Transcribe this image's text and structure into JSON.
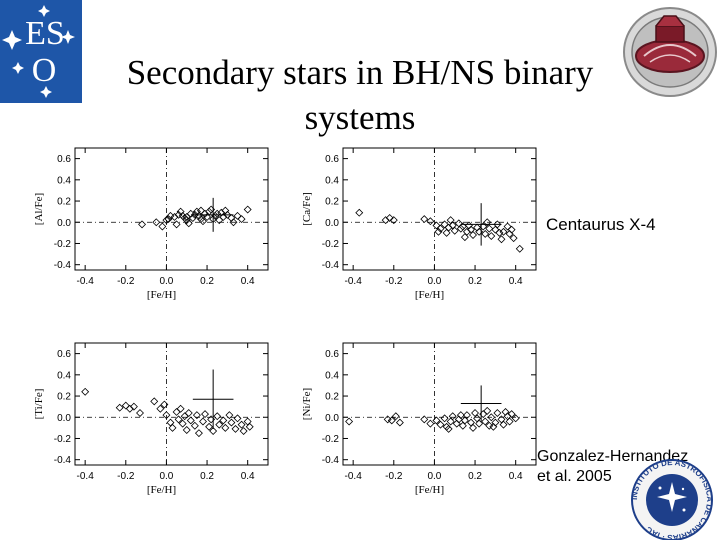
{
  "slide": {
    "title_line1": "Secondary stars in BH/NS binary",
    "title_line2": "systems",
    "system_name": "Centaurus X-4",
    "reference_line1": "Gonzalez-Hernandez",
    "reference_line2": "et al. 2005"
  },
  "logos": {
    "eso": "ESO",
    "iac": "INSTITUTO DE ASTROFISICA DE CANARIAS · IAC"
  },
  "chart_data": [
    {
      "type": "scatter",
      "ylabel": "[Al/Fe]",
      "xlabel": "[Fe/H]",
      "xlim": [
        -0.45,
        0.5
      ],
      "ylim": [
        -0.45,
        0.7
      ],
      "xticks": [
        -0.4,
        -0.2,
        0.0,
        0.2,
        0.4
      ],
      "yticks": [
        -0.4,
        -0.2,
        0.0,
        0.2,
        0.4,
        0.6
      ],
      "xtick_labels": [
        "-0.4",
        "-0.2",
        "0.0",
        "0.2",
        "0.4"
      ],
      "ytick_labels": [
        "-0.4",
        "-0.2",
        "0.0",
        "0.2",
        "0.4",
        "0.6"
      ],
      "reference_lines": {
        "x": 0,
        "y": 0
      },
      "marker": "open-diamond",
      "cen_x4": {
        "feh": 0.23,
        "feh_err": 0.1,
        "value": 0.07,
        "value_err": 0.16
      },
      "points": [
        [
          -0.05,
          0.0
        ],
        [
          0.0,
          0.02
        ],
        [
          0.01,
          0.03
        ],
        [
          0.04,
          0.05
        ],
        [
          0.06,
          0.07
        ],
        [
          0.08,
          0.06
        ],
        [
          0.1,
          0.05
        ],
        [
          0.12,
          0.08
        ],
        [
          0.13,
          0.04
        ],
        [
          0.15,
          0.1
        ],
        [
          0.16,
          0.06
        ],
        [
          0.17,
          0.03
        ],
        [
          0.19,
          0.08
        ],
        [
          0.2,
          0.05
        ],
        [
          0.21,
          0.1
        ],
        [
          0.23,
          0.03
        ],
        [
          0.24,
          0.06
        ],
        [
          0.25,
          0.08
        ],
        [
          0.26,
          0.02
        ],
        [
          0.28,
          0.05
        ],
        [
          0.3,
          0.07
        ],
        [
          0.32,
          0.04
        ],
        [
          0.35,
          0.06
        ],
        [
          0.1,
          0.02
        ],
        [
          0.07,
          0.1
        ],
        [
          0.14,
          0.07
        ],
        [
          0.02,
          0.06
        ],
        [
          0.18,
          0.01
        ],
        [
          0.22,
          0.12
        ],
        [
          0.27,
          0.09
        ],
        [
          0.4,
          0.12
        ],
        [
          -0.12,
          -0.02
        ],
        [
          -0.02,
          -0.04
        ],
        [
          0.05,
          -0.02
        ],
        [
          0.11,
          -0.01
        ],
        [
          0.33,
          0.0
        ],
        [
          0.37,
          0.03
        ],
        [
          0.29,
          0.11
        ],
        [
          0.09,
          0.04
        ],
        [
          0.17,
          0.11
        ]
      ]
    },
    {
      "type": "scatter",
      "ylabel": "[Ca/Fe]",
      "xlabel": "[Fe/H]",
      "xlim": [
        -0.45,
        0.5
      ],
      "ylim": [
        -0.45,
        0.7
      ],
      "xticks": [
        -0.4,
        -0.2,
        0.0,
        0.2,
        0.4
      ],
      "yticks": [
        -0.4,
        -0.2,
        0.0,
        0.2,
        0.4,
        0.6
      ],
      "xtick_labels": [
        "-0.4",
        "-0.2",
        "0.0",
        "0.2",
        "0.4"
      ],
      "ytick_labels": [
        "-0.4",
        "-0.2",
        "0.0",
        "0.2",
        "0.4",
        "0.6"
      ],
      "reference_lines": {
        "x": 0,
        "y": 0
      },
      "marker": "open-diamond",
      "cen_x4": {
        "feh": 0.23,
        "feh_err": 0.1,
        "value": -0.02,
        "value_err": 0.2
      },
      "points": [
        [
          -0.37,
          0.09
        ],
        [
          -0.24,
          0.02
        ],
        [
          -0.22,
          0.04
        ],
        [
          -0.2,
          0.02
        ],
        [
          -0.05,
          0.03
        ],
        [
          -0.02,
          0.01
        ],
        [
          0.01,
          -0.03
        ],
        [
          0.03,
          -0.06
        ],
        [
          0.05,
          -0.02
        ],
        [
          0.06,
          -0.1
        ],
        [
          0.07,
          -0.05
        ],
        [
          0.09,
          -0.03
        ],
        [
          0.1,
          -0.08
        ],
        [
          0.12,
          -0.01
        ],
        [
          0.13,
          -0.06
        ],
        [
          0.14,
          -0.04
        ],
        [
          0.16,
          -0.09
        ],
        [
          0.17,
          -0.03
        ],
        [
          0.18,
          -0.07
        ],
        [
          0.19,
          -0.12
        ],
        [
          0.21,
          -0.05
        ],
        [
          0.22,
          -0.09
        ],
        [
          0.24,
          -0.04
        ],
        [
          0.25,
          -0.11
        ],
        [
          0.27,
          -0.06
        ],
        [
          0.28,
          -0.13
        ],
        [
          0.3,
          -0.07
        ],
        [
          0.31,
          -0.02
        ],
        [
          0.32,
          -0.1
        ],
        [
          0.34,
          -0.09
        ],
        [
          0.36,
          -0.04
        ],
        [
          0.37,
          -0.11
        ],
        [
          0.38,
          -0.07
        ],
        [
          0.39,
          -0.15
        ],
        [
          0.42,
          -0.25
        ],
        [
          0.33,
          -0.16
        ],
        [
          0.15,
          -0.14
        ],
        [
          0.02,
          -0.09
        ],
        [
          0.08,
          0.02
        ],
        [
          0.26,
          0.0
        ]
      ]
    },
    {
      "type": "scatter",
      "ylabel": "[Ti/Fe]",
      "xlabel": "[Fe/H]",
      "xlim": [
        -0.45,
        0.5
      ],
      "ylim": [
        -0.45,
        0.7
      ],
      "xticks": [
        -0.4,
        -0.2,
        0.0,
        0.2,
        0.4
      ],
      "yticks": [
        -0.4,
        -0.2,
        0.0,
        0.2,
        0.4,
        0.6
      ],
      "xtick_labels": [
        "-0.4",
        "-0.2",
        "0.0",
        "0.2",
        "0.4"
      ],
      "ytick_labels": [
        "-0.4",
        "-0.2",
        "0.0",
        "0.2",
        "0.4",
        "0.6"
      ],
      "reference_lines": {
        "x": 0,
        "y": 0
      },
      "marker": "open-diamond",
      "cen_x4": {
        "feh": 0.23,
        "feh_err": 0.1,
        "value": 0.17,
        "value_err": 0.28
      },
      "points": [
        [
          -0.4,
          0.24
        ],
        [
          -0.23,
          0.09
        ],
        [
          -0.2,
          0.11
        ],
        [
          -0.18,
          0.08
        ],
        [
          -0.16,
          0.1
        ],
        [
          -0.13,
          0.04
        ],
        [
          -0.06,
          0.15
        ],
        [
          -0.03,
          0.08
        ],
        [
          -0.01,
          0.12
        ],
        [
          0.0,
          0.02
        ],
        [
          0.02,
          -0.05
        ],
        [
          0.03,
          -0.1
        ],
        [
          0.05,
          0.05
        ],
        [
          0.06,
          -0.02
        ],
        [
          0.08,
          -0.06
        ],
        [
          0.09,
          0.01
        ],
        [
          0.1,
          -0.12
        ],
        [
          0.11,
          0.04
        ],
        [
          0.12,
          -0.03
        ],
        [
          0.14,
          -0.08
        ],
        [
          0.15,
          0.02
        ],
        [
          0.16,
          -0.15
        ],
        [
          0.18,
          -0.04
        ],
        [
          0.19,
          0.03
        ],
        [
          0.21,
          -0.09
        ],
        [
          0.22,
          -0.02
        ],
        [
          0.23,
          -0.13
        ],
        [
          0.25,
          0.01
        ],
        [
          0.26,
          -0.07
        ],
        [
          0.28,
          -0.03
        ],
        [
          0.29,
          -0.1
        ],
        [
          0.31,
          0.02
        ],
        [
          0.32,
          -0.05
        ],
        [
          0.34,
          -0.11
        ],
        [
          0.35,
          -0.01
        ],
        [
          0.37,
          -0.07
        ],
        [
          0.38,
          -0.13
        ],
        [
          0.4,
          -0.04
        ],
        [
          0.41,
          -0.09
        ],
        [
          0.07,
          0.08
        ]
      ]
    },
    {
      "type": "scatter",
      "ylabel": "[Ni/Fe]",
      "xlabel": "[Fe/H]",
      "xlim": [
        -0.45,
        0.5
      ],
      "ylim": [
        -0.45,
        0.7
      ],
      "xticks": [
        -0.4,
        -0.2,
        0.0,
        0.2,
        0.4
      ],
      "yticks": [
        -0.4,
        -0.2,
        0.0,
        0.2,
        0.4,
        0.6
      ],
      "xtick_labels": [
        "-0.4",
        "-0.2",
        "0.0",
        "0.2",
        "0.4"
      ],
      "ytick_labels": [
        "-0.4",
        "-0.2",
        "0.0",
        "0.2",
        "0.4",
        "0.6"
      ],
      "reference_lines": {
        "x": 0,
        "y": 0
      },
      "marker": "open-diamond",
      "cen_x4": {
        "feh": 0.23,
        "feh_err": 0.1,
        "value": 0.13,
        "value_err": 0.17
      },
      "points": [
        [
          -0.42,
          -0.04
        ],
        [
          -0.23,
          -0.02
        ],
        [
          -0.21,
          -0.03
        ],
        [
          -0.19,
          0.01
        ],
        [
          -0.17,
          -0.05
        ],
        [
          -0.05,
          -0.02
        ],
        [
          -0.02,
          -0.06
        ],
        [
          0.01,
          -0.03
        ],
        [
          0.03,
          -0.07
        ],
        [
          0.05,
          -0.01
        ],
        [
          0.06,
          -0.09
        ],
        [
          0.08,
          -0.04
        ],
        [
          0.09,
          0.01
        ],
        [
          0.11,
          -0.06
        ],
        [
          0.12,
          -0.02
        ],
        [
          0.14,
          -0.08
        ],
        [
          0.15,
          -0.03
        ],
        [
          0.16,
          0.02
        ],
        [
          0.18,
          -0.05
        ],
        [
          0.19,
          -0.1
        ],
        [
          0.21,
          -0.01
        ],
        [
          0.22,
          -0.06
        ],
        [
          0.24,
          0.03
        ],
        [
          0.25,
          -0.04
        ],
        [
          0.27,
          -0.08
        ],
        [
          0.28,
          0.0
        ],
        [
          0.3,
          -0.05
        ],
        [
          0.31,
          0.04
        ],
        [
          0.33,
          -0.02
        ],
        [
          0.34,
          -0.07
        ],
        [
          0.36,
          0.01
        ],
        [
          0.37,
          -0.04
        ],
        [
          0.38,
          0.03
        ],
        [
          0.4,
          -0.01
        ],
        [
          0.26,
          0.06
        ],
        [
          0.2,
          0.04
        ],
        [
          0.13,
          0.02
        ],
        [
          0.07,
          -0.11
        ],
        [
          0.29,
          -0.09
        ],
        [
          0.35,
          0.05
        ]
      ]
    }
  ]
}
